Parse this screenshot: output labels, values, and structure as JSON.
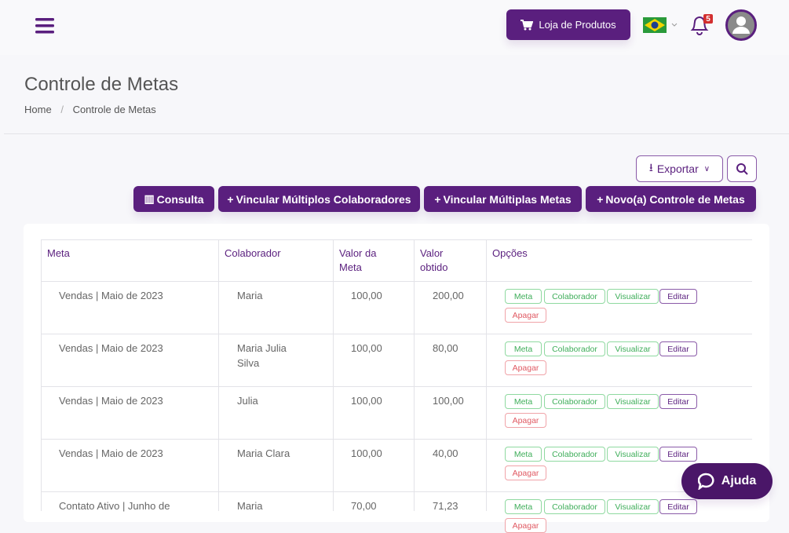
{
  "header": {
    "store_button": "Loja de Produtos",
    "notification_count": 5
  },
  "page": {
    "title": "Controle de Metas",
    "breadcrumb": [
      "Home",
      "Controle de Metas"
    ]
  },
  "toolbar": {
    "export": "Exportar",
    "buttons": [
      "Consulta",
      "Vincular Múltiplos Colaboradores",
      "Vincular Múltiplas Metas",
      "Novo(a) Controle de Metas"
    ]
  },
  "table": {
    "columns": [
      "Meta",
      "Colaborador",
      "Valor da Meta",
      "Valor obtido",
      "Opções"
    ],
    "rows": [
      [
        "Vendas | Maio de 2023",
        "Maria",
        "100,00",
        "200,00"
      ],
      [
        "Vendas | Maio de 2023",
        "Maria Julia Silva",
        "100,00",
        "80,00"
      ],
      [
        "Vendas | Maio de 2023",
        "Julia",
        "100,00",
        "100,00"
      ],
      [
        "Vendas | Maio de 2023",
        "Maria Clara",
        "100,00",
        "40,00"
      ],
      [
        "Contato Ativo | Junho de",
        "Maria",
        "70,00",
        "71,23"
      ]
    ],
    "actions": [
      "Meta",
      "Colaborador",
      "Visualizar",
      "Editar",
      "Apagar"
    ]
  },
  "help": "Ajuda"
}
